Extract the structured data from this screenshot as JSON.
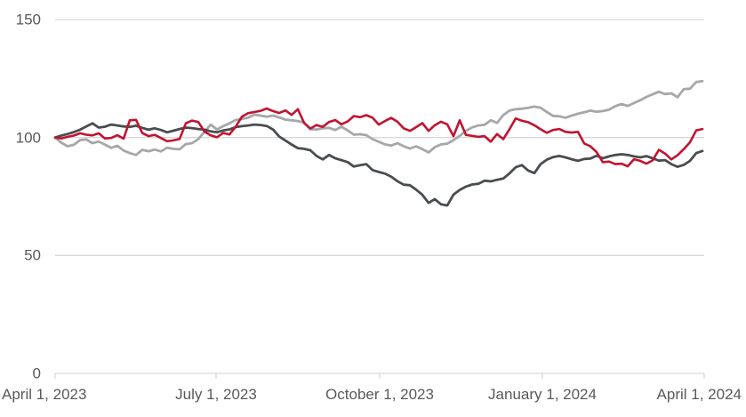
{
  "chart_data": {
    "type": "line",
    "title": "",
    "xlabel": "",
    "ylabel": "",
    "ylim": [
      0,
      150
    ],
    "grid": "horizontal",
    "legend_position": "none",
    "y_tick_labels": [
      "0",
      "50",
      "100",
      "150"
    ],
    "y_tick_values": [
      0,
      50,
      100,
      150
    ],
    "x_tick_labels": [
      "April 1, 2023",
      "July 1, 2023",
      "October 1, 2023",
      "January 1, 2024",
      "April 1, 2024"
    ],
    "series": [
      {
        "name": "light-gray-line",
        "color": "#a6a7a9",
        "values": [
          100,
          97.8,
          96.3,
          96.9,
          98.9,
          99.2,
          97.6,
          98.3,
          97,
          95.6,
          96.5,
          94.5,
          93.4,
          92.6,
          94.8,
          94.2,
          94.9,
          94.1,
          95.7,
          95.2,
          95,
          97.2,
          97.6,
          99.3,
          102.4,
          105.5,
          103.4,
          104.8,
          106,
          107.4,
          107.9,
          108.4,
          109.7,
          109.3,
          108.8,
          109.3,
          108.5,
          107.6,
          107.3,
          107,
          106.3,
          103.5,
          103.4,
          103.9,
          104.1,
          103.2,
          104.6,
          103,
          101.2,
          101.4,
          101,
          99.3,
          98.2,
          97.1,
          96.6,
          97.6,
          96.3,
          95.3,
          96.3,
          95.1,
          93.7,
          95.9,
          97.1,
          97.4,
          98.9,
          100.7,
          102.8,
          104.3,
          105.1,
          105.4,
          107.3,
          106.2,
          109.5,
          111.4,
          112,
          112.2,
          112.6,
          113.1,
          112.6,
          110.8,
          109.2,
          109,
          108.4,
          109.3,
          110.1,
          110.7,
          111.4,
          110.9,
          111.2,
          111.8,
          113.3,
          114.2,
          113.4,
          114.6,
          115.8,
          117.2,
          118.3,
          119.4,
          118.4,
          118.7,
          117.1,
          120.5,
          120.7,
          123.5,
          123.9
        ]
      },
      {
        "name": "dark-gray-line",
        "color": "#494d50",
        "values": [
          100,
          100.8,
          101.5,
          102.3,
          103.3,
          104.7,
          106,
          104.2,
          104.6,
          105.5,
          105.1,
          104.7,
          104.5,
          105,
          104.1,
          103.3,
          103.9,
          103.2,
          102.2,
          102.9,
          103.6,
          104.2,
          104,
          103.6,
          103.3,
          102.6,
          102.2,
          103,
          103.4,
          104.4,
          104.8,
          105.1,
          105.5,
          105.3,
          104.9,
          103.4,
          100.4,
          98.7,
          97,
          95.5,
          95.2,
          94.6,
          92.2,
          90.7,
          92.6,
          91.2,
          90.4,
          89.6,
          87.7,
          88.3,
          88.7,
          86.2,
          85.4,
          84.7,
          83.4,
          81.5,
          80,
          79.8,
          77.9,
          75.7,
          72.3,
          73.9,
          71.7,
          71.2,
          75.8,
          77.8,
          79.2,
          80.1,
          80.4,
          81.7,
          81.4,
          82.1,
          82.6,
          84.8,
          87.4,
          88.3,
          86,
          84.9,
          88.7,
          90.6,
          91.7,
          92.2,
          91.6,
          90.8,
          90.1,
          90.9,
          91.1,
          92.3,
          91.2,
          92,
          92.6,
          92.9,
          92.6,
          92,
          91.6,
          92.1,
          91.2,
          90.2,
          90.4,
          88.7,
          87.6,
          88.4,
          90.1,
          93.4,
          94.3
        ]
      },
      {
        "name": "red-line",
        "color": "#c21330",
        "values": [
          100,
          99.6,
          100.3,
          100.8,
          101.8,
          101.2,
          100.9,
          101.8,
          99.6,
          99.8,
          101,
          99.5,
          107.3,
          107.5,
          101.9,
          100.6,
          101.1,
          99.8,
          98.4,
          98.8,
          99.4,
          106,
          107.2,
          106.6,
          102.5,
          100.9,
          100.1,
          101.9,
          101.3,
          104.5,
          108.8,
          110.3,
          110.8,
          111.3,
          112.3,
          111.2,
          110.4,
          111.5,
          109.6,
          112,
          106.2,
          103.8,
          105.3,
          104.5,
          106.6,
          107.4,
          105.6,
          106.8,
          109.1,
          108.6,
          109.5,
          108.4,
          105.5,
          107,
          108.3,
          106.7,
          103.9,
          102.8,
          104.4,
          106.1,
          102.8,
          105.2,
          106.7,
          105.6,
          100.6,
          107.3,
          101.1,
          100.7,
          100.3,
          100.6,
          98.2,
          101.5,
          99.3,
          103.5,
          108.1,
          107.1,
          106.5,
          105.2,
          103.5,
          102,
          103.2,
          103.6,
          102.4,
          102.1,
          102.4,
          97.5,
          96.3,
          93.8,
          89.5,
          89.8,
          88.7,
          88.9,
          87.8,
          90.8,
          90.1,
          88.9,
          90.3,
          94.8,
          93.2,
          90.7,
          92.5,
          95.1,
          98,
          103,
          103.6
        ]
      }
    ],
    "colors": {
      "gridline": "#d9d9d9",
      "axis_label": "#595959",
      "background": "#ffffff"
    }
  }
}
